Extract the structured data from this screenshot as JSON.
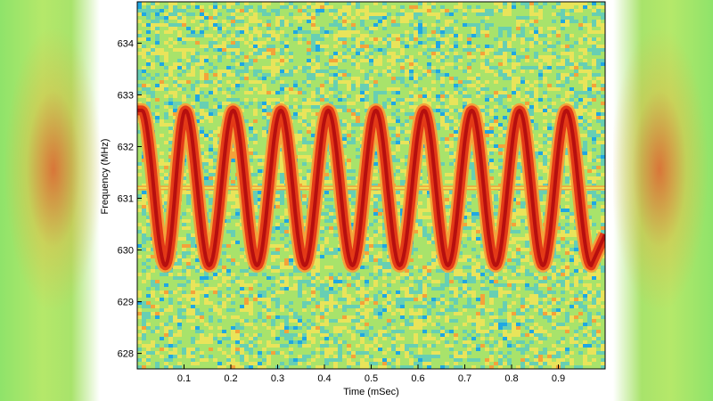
{
  "chart_data": {
    "type": "heatmap",
    "title": "",
    "xlabel": "Time (mSec)",
    "ylabel": "Frequency (MHz)",
    "xlim": [
      0.0,
      1.0
    ],
    "ylim": [
      627.7,
      634.8
    ],
    "xticks": [
      "0.1",
      "0.2",
      "0.3",
      "0.4",
      "0.5",
      "0.6",
      "0.7",
      "0.8",
      "0.9"
    ],
    "yticks": [
      "628",
      "629",
      "630",
      "631",
      "632",
      "633",
      "634"
    ],
    "series": [
      {
        "kind": "sinusoidal frequency sweep",
        "center_mhz": 631.2,
        "peak_mhz": 632.7,
        "trough_mhz": 629.7,
        "peak_times_msec": [
          0.01,
          0.103,
          0.205,
          0.307,
          0.408,
          0.51,
          0.613,
          0.715,
          0.817,
          0.917
        ],
        "trough_times_msec": [
          0.06,
          0.154,
          0.256,
          0.358,
          0.46,
          0.561,
          0.664,
          0.766,
          0.867,
          0.97
        ]
      },
      {
        "kind": "constant carrier",
        "frequency_mhz": 631.2
      }
    ],
    "colormap": [
      "#1fa7e3",
      "#67cfb3",
      "#a8e36b",
      "#e9e45a",
      "#f4a23a",
      "#e33a17",
      "#b60f0f"
    ],
    "grid": false,
    "legend": "none"
  }
}
